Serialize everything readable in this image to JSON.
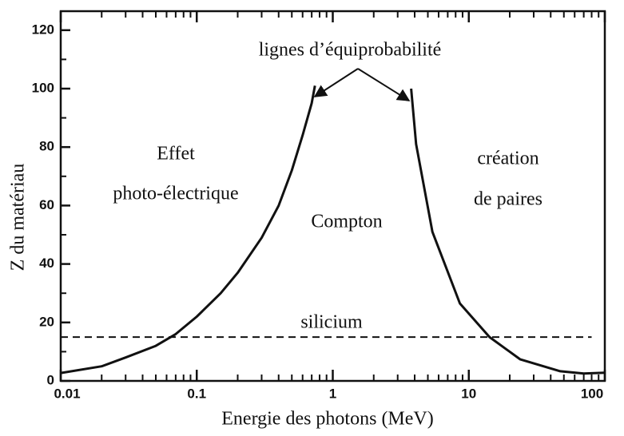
{
  "chart_data": {
    "type": "line",
    "xlabel": "Energie des photons (MeV)",
    "ylabel": "Z du matériau",
    "xscale": "log",
    "xlim": [
      0.01,
      100
    ],
    "xticks": [
      0.01,
      0.1,
      1,
      10,
      100
    ],
    "xminor_ticks": [
      0.02,
      0.03,
      0.04,
      0.05,
      0.06,
      0.07,
      0.08,
      0.09,
      0.2,
      0.3,
      0.4,
      0.5,
      0.6,
      0.7,
      0.8,
      0.9,
      2,
      3,
      4,
      5,
      6,
      7,
      8,
      9,
      20,
      30,
      40,
      50,
      60,
      70,
      80,
      90
    ],
    "ylim": [
      0,
      126.5
    ],
    "yticks": [
      0,
      20,
      40,
      60,
      80,
      100,
      120
    ],
    "yminor_ticks": [
      10,
      30,
      50,
      70,
      90,
      110
    ],
    "series": [
      {
        "color": "#111111",
        "x": [
          0.01,
          0.02,
          0.03,
          0.05,
          0.07,
          0.1,
          0.15,
          0.2,
          0.3,
          0.4,
          0.5,
          0.6,
          0.7,
          0.74
        ],
        "values": [
          2.7,
          5,
          8,
          12,
          16,
          22,
          30,
          37,
          49,
          60,
          72,
          84,
          95,
          101
        ]
      },
      {
        "color": "#111111",
        "x": [
          3.77,
          4.1,
          5.4,
          8.6,
          14.2,
          23.8,
          47,
          70,
          100
        ],
        "values": [
          100,
          81,
          51,
          26.5,
          15,
          7.4,
          3.3,
          2.5,
          2.8
        ]
      },
      {
        "color": "#111111",
        "dashed": true,
        "x": [
          0.01,
          80
        ],
        "values": [
          15,
          15
        ]
      }
    ],
    "annotations": [
      "lignes d’équiprobabilité",
      "Effet",
      "photo-électrique",
      "Compton",
      "création",
      "de paires",
      "silicium"
    ]
  }
}
